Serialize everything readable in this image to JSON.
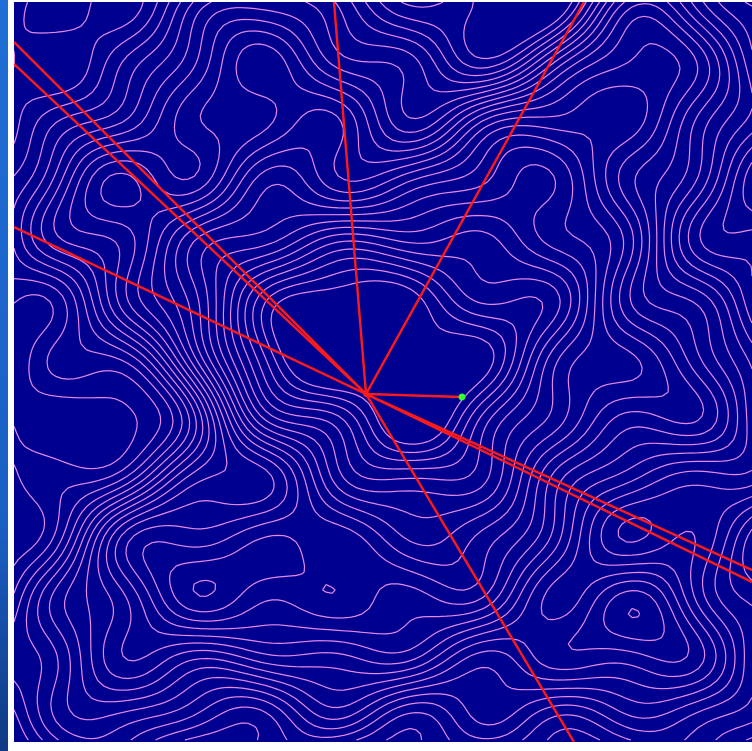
{
  "colors": {
    "background": "#000090",
    "contour": "#e58ae8",
    "ray": "#ff1a1a",
    "target_marker": "#33ff33",
    "left_strip": "#1f6fd6"
  },
  "map": {
    "type": "topographic-contour-map",
    "observer_point": "center-left",
    "ray_count": 8
  }
}
